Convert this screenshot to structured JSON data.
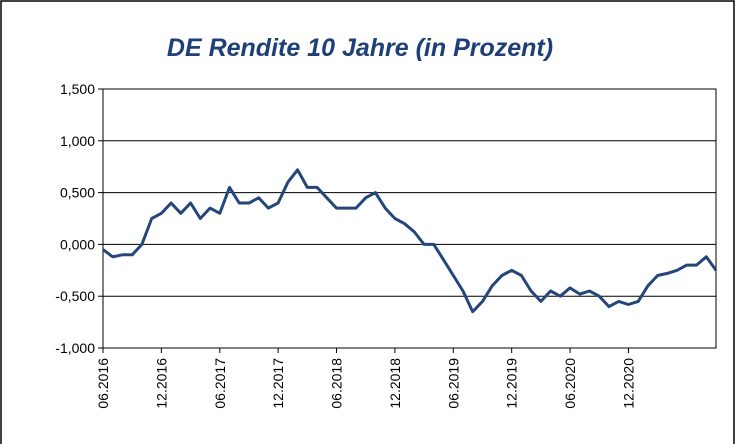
{
  "chart_data": {
    "type": "line",
    "title": "DE Rendite 10 Jahre (in Prozent)",
    "x": [
      "06.2016",
      "07.2016",
      "08.2016",
      "09.2016",
      "10.2016",
      "11.2016",
      "12.2016",
      "01.2017",
      "02.2017",
      "03.2017",
      "04.2017",
      "05.2017",
      "06.2017",
      "07.2017",
      "08.2017",
      "09.2017",
      "10.2017",
      "11.2017",
      "12.2017",
      "01.2018",
      "02.2018",
      "03.2018",
      "04.2018",
      "05.2018",
      "06.2018",
      "07.2018",
      "08.2018",
      "09.2018",
      "10.2018",
      "11.2018",
      "12.2018",
      "01.2019",
      "02.2019",
      "03.2019",
      "04.2019",
      "05.2019",
      "06.2019",
      "07.2019",
      "08.2019",
      "09.2019",
      "10.2019",
      "11.2019",
      "12.2019",
      "01.2020",
      "02.2020",
      "03.2020",
      "04.2020",
      "05.2020",
      "06.2020",
      "07.2020",
      "08.2020",
      "09.2020",
      "10.2020",
      "11.2020",
      "12.2020",
      "01.2021",
      "02.2021",
      "03.2021",
      "04.2021",
      "05.2021",
      "06.2021",
      "07.2021",
      "08.2021",
      "09.2021"
    ],
    "series": [
      {
        "name": "DE Rendite 10 Jahre",
        "color": "#24467a",
        "values": [
          -0.05,
          -0.12,
          -0.1,
          -0.1,
          0.0,
          0.25,
          0.3,
          0.4,
          0.3,
          0.4,
          0.25,
          0.35,
          0.3,
          0.55,
          0.4,
          0.4,
          0.45,
          0.35,
          0.4,
          0.6,
          0.72,
          0.55,
          0.55,
          0.45,
          0.35,
          0.35,
          0.35,
          0.45,
          0.5,
          0.35,
          0.25,
          0.2,
          0.12,
          0.0,
          0.0,
          -0.15,
          -0.3,
          -0.45,
          -0.65,
          -0.55,
          -0.4,
          -0.3,
          -0.25,
          -0.3,
          -0.45,
          -0.55,
          -0.45,
          -0.5,
          -0.42,
          -0.48,
          -0.45,
          -0.5,
          -0.6,
          -0.55,
          -0.58,
          -0.55,
          -0.4,
          -0.3,
          -0.28,
          -0.25,
          -0.2,
          -0.2,
          -0.12,
          -0.25
        ]
      }
    ],
    "xticks": [
      "06.2016",
      "12.2016",
      "06.2017",
      "12.2017",
      "06.2018",
      "12.2018",
      "06.2019",
      "12.2019",
      "06.2020",
      "12.2020"
    ],
    "ylim": [
      -1.0,
      1.5
    ],
    "yticks": [
      {
        "value": -1.0,
        "label": "-1,000"
      },
      {
        "value": -0.5,
        "label": "-0,500"
      },
      {
        "value": 0,
        "label": "0,000"
      },
      {
        "value": 0.5,
        "label": "0,500"
      },
      {
        "value": 1.0,
        "label": "1,000"
      },
      {
        "value": 1.5,
        "label": "1,500"
      }
    ],
    "grid": true
  }
}
